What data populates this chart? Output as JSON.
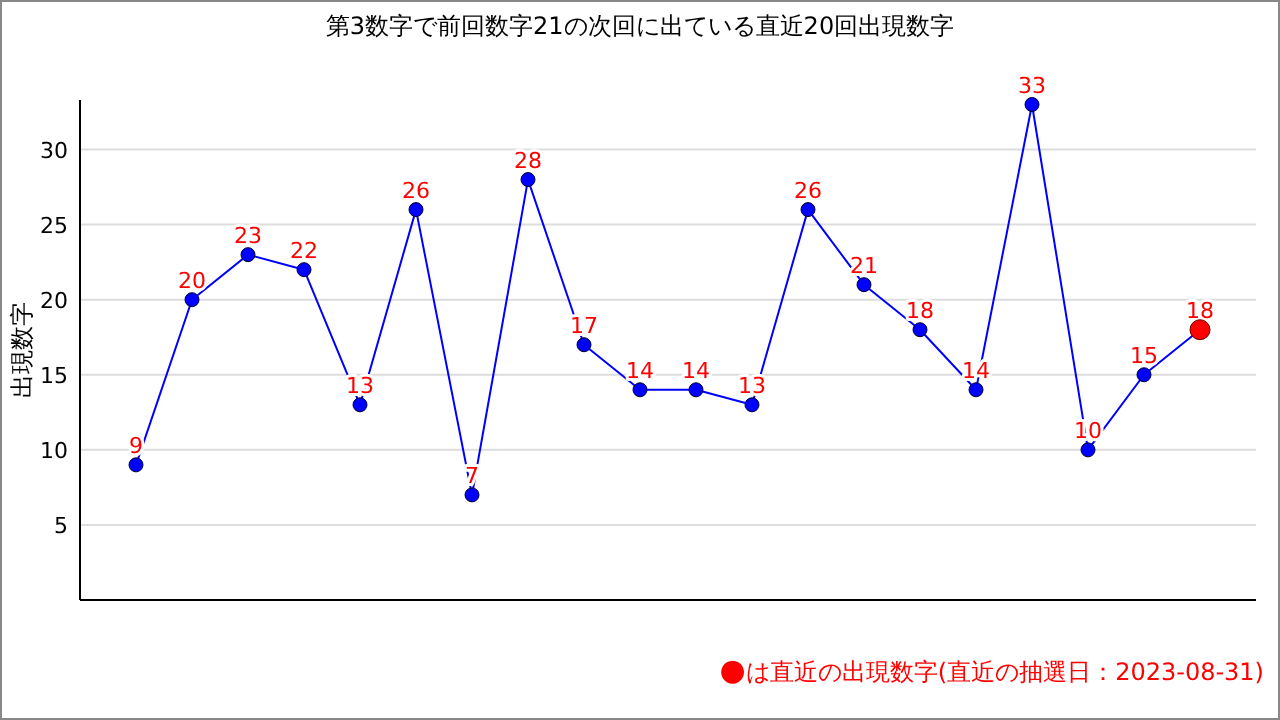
{
  "chart_data": {
    "type": "line",
    "title": "第3数字で前回数字21の次回に出ている直近20回出現数字",
    "ylabel": "出現数字",
    "categories": [
      null,
      null,
      null,
      null,
      null,
      null,
      null,
      null,
      null,
      null,
      null,
      null,
      null,
      null,
      null,
      null,
      null,
      null,
      null,
      null
    ],
    "series": [
      {
        "color": "#0000ff",
        "values": [
          9,
          20,
          23,
          22,
          13,
          26,
          7,
          28,
          17,
          14,
          14,
          13,
          26,
          21,
          18,
          14,
          33,
          10,
          15,
          18
        ],
        "value_labels": [
          "9",
          "20",
          "23",
          "22",
          "13",
          "26",
          "7",
          "28",
          "17",
          "14",
          "14",
          "13",
          "26",
          "21",
          "18",
          "14",
          "33",
          "10",
          "15",
          "18"
        ]
      },
      {
        "type": "scatter",
        "color": "#ff0000",
        "values": [
          null,
          null,
          null,
          null,
          null,
          null,
          null,
          null,
          null,
          null,
          null,
          null,
          null,
          null,
          null,
          null,
          null,
          null,
          null,
          18
        ]
      }
    ],
    "ylim": [
      0,
      33.3
    ],
    "yticks": [
      5,
      10,
      15,
      20,
      25,
      30
    ],
    "grid": "y",
    "marker": "circle",
    "annotations": [
      "●は直近の出現数字(直近の抽選日：2023-08-31)"
    ]
  }
}
